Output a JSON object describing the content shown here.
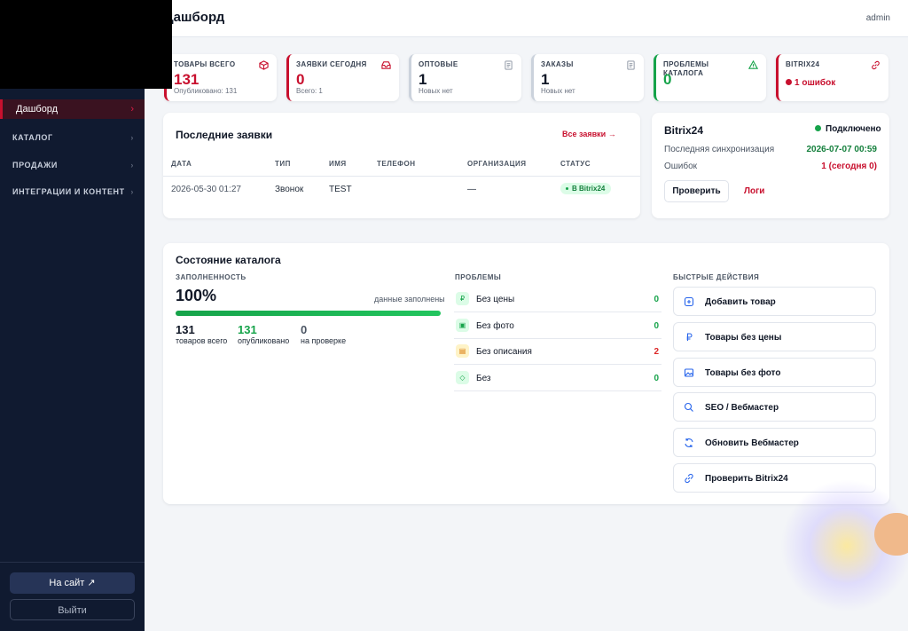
{
  "header": {
    "title": "Дашборд",
    "user": "admin"
  },
  "sidebar": {
    "nav": [
      "Дашборд",
      "КАТАЛОГ",
      "ПРОДАЖИ",
      "ИНТЕГРАЦИИ И КОНТЕНТ"
    ],
    "site_button": "На сайт ↗",
    "logout_button": "Выйти"
  },
  "stats": [
    {
      "label": "ТОВАРЫ ВСЕГО",
      "value": 131,
      "sub": "Опубликовано: 131",
      "accent": "#c8102e",
      "value_color": "#c8102e"
    },
    {
      "label": "ЗАЯВКИ СЕГОДНЯ",
      "value": 0,
      "sub": "Всего: 1",
      "accent": "#c8102e",
      "value_color": "#c8102e"
    },
    {
      "label": "ОПТОВЫЕ",
      "value": 1,
      "sub": "Новых нет",
      "accent": "#cbd2dc",
      "value_color": "#111827"
    },
    {
      "label": "ЗАКАЗЫ",
      "value": 1,
      "sub": "Новых нет",
      "accent": "#cbd2dc",
      "value_color": "#111827"
    },
    {
      "label": "ПРОБЛЕМЫ КАТАЛОГА",
      "value": 0,
      "accent": "#16a34a",
      "value_color": "#16a34a"
    },
    {
      "label": "BITRIX24",
      "status": "1 ошибок",
      "accent": "#c8102e",
      "value_color": "#c8102e"
    }
  ],
  "requests": {
    "title": "Последние заявки",
    "all_link": "Все заявки →",
    "columns": [
      "ДАТА",
      "ТИП",
      "ИМЯ",
      "ТЕЛЕФОН",
      "ОРГАНИЗАЦИЯ",
      "СТАТУС"
    ],
    "rows": [
      {
        "date": "2026-05-30 01:27",
        "type": "Звонок",
        "name": "TEST",
        "org": "—",
        "status": "В Bitrix24"
      }
    ]
  },
  "bitrix": {
    "title": "Bitrix24",
    "status": "Подключено",
    "sync_label": "Последняя синхронизация",
    "sync_value": "2026-07-07 00:59",
    "errors_label": "Ошибок",
    "errors_value": "1 (сегодня 0)",
    "check_button": "Проверить",
    "logs_button": "Логи"
  },
  "catalog": {
    "title": "Состояние каталога",
    "fill": {
      "heading": "ЗАПОЛНЕННОСТЬ",
      "percent": {
        "value": 100,
        "label": "100%"
      },
      "note": "данные заполнены",
      "counts": [
        {
          "value": 131,
          "label": "товаров всего"
        },
        {
          "value": 131,
          "label": "опубликовано"
        },
        {
          "value": 0,
          "label": "на проверке"
        }
      ]
    },
    "problems": {
      "heading": "ПРОБЛЕМЫ",
      "items": [
        {
          "label": "Без цены",
          "value": 0
        },
        {
          "label": "Без фото",
          "value": 0
        },
        {
          "label": "Без описания",
          "value": 2
        },
        {
          "label": "Без",
          "value": 0
        }
      ]
    },
    "actions": {
      "heading": "БЫСТРЫЕ ДЕЙСТВИЯ",
      "items": [
        "Добавить товар",
        "Товары без цены",
        "Товары без фото",
        "SEO / Вебмастер",
        "Обновить Вебмастер",
        "Проверить Bitrix24"
      ]
    }
  }
}
